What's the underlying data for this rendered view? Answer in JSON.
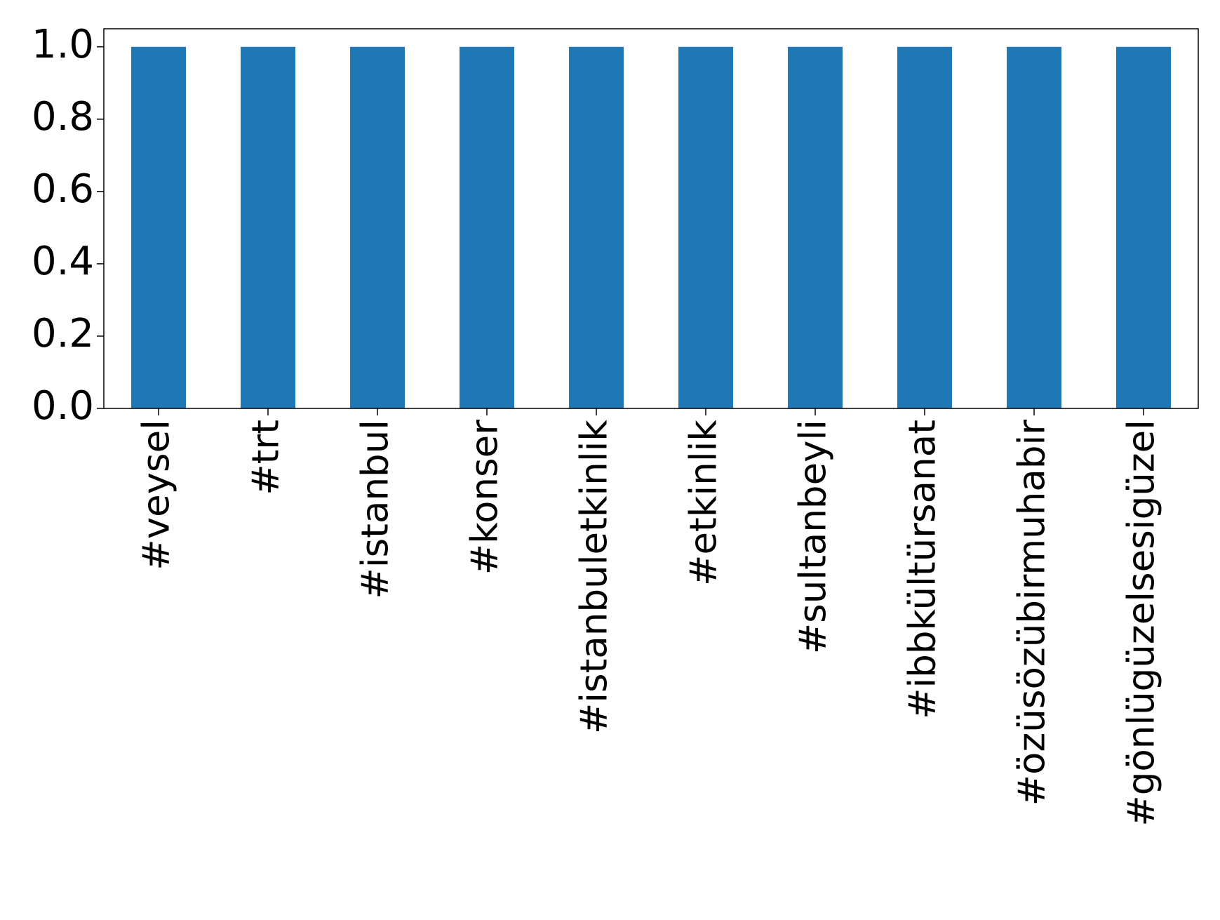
{
  "chart_data": {
    "type": "bar",
    "categories": [
      "#veysel",
      "#trt",
      "#istanbul",
      "#konser",
      "#istanbuletkinlik",
      "#etkinlik",
      "#sultanbeyli",
      "#ibbkültürsanat",
      "#özüsözübirmuhabir",
      "#gönlügüzelsesigüzel"
    ],
    "values": [
      1,
      1,
      1,
      1,
      1,
      1,
      1,
      1,
      1,
      1
    ],
    "color": "#1f77b4",
    "ylim": [
      0,
      1.05
    ],
    "yticks": [
      {
        "value": 0,
        "label": "0.0"
      },
      {
        "value": 0.2,
        "label": "0.2"
      },
      {
        "value": 0.4,
        "label": "0.4"
      },
      {
        "value": 0.6,
        "label": "0.6"
      },
      {
        "value": 0.8,
        "label": "0.8"
      },
      {
        "value": 1,
        "label": "1.0"
      }
    ],
    "grid": false
  }
}
